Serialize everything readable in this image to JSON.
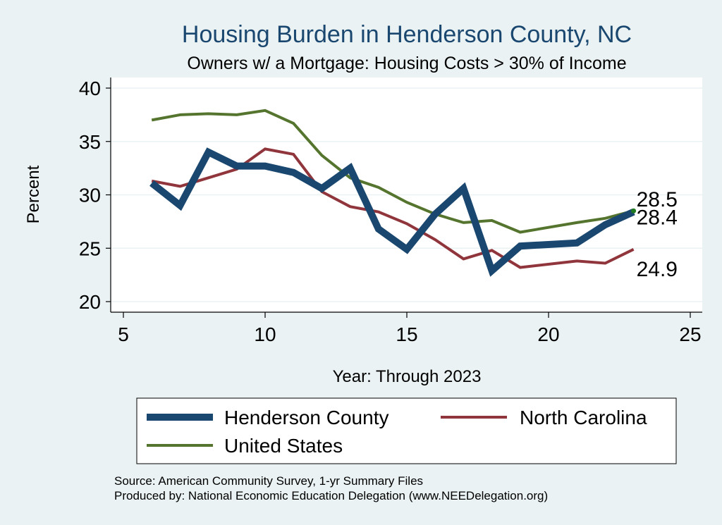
{
  "chart_data": {
    "type": "line",
    "title": "Housing Burden in Henderson County, NC",
    "subtitle": "Owners w/ a Mortgage: Housing Costs > 30% of Income",
    "xlabel": "Year: Through 2023",
    "ylabel": "Percent",
    "xlim": [
      5,
      25
    ],
    "ylim": [
      20,
      40
    ],
    "x_ticks": [
      5,
      10,
      15,
      20,
      25
    ],
    "y_ticks": [
      20,
      25,
      30,
      35,
      40
    ],
    "grid": true,
    "legend": "bottom",
    "series": [
      {
        "name": "Henderson County",
        "color": "#1a476f",
        "x": [
          6,
          7,
          8,
          9,
          10,
          11,
          12,
          13,
          14,
          15,
          16,
          17,
          18,
          19,
          21,
          22,
          23
        ],
        "values": [
          31.1,
          29.0,
          34.0,
          32.7,
          32.7,
          32.1,
          30.6,
          32.5,
          26.8,
          24.9,
          28.2,
          30.6,
          22.9,
          25.2,
          25.5,
          27.2,
          28.4
        ],
        "end_label": "28.4"
      },
      {
        "name": "North Carolina",
        "color": "#90353b",
        "x": [
          6,
          7,
          8,
          9,
          10,
          11,
          12,
          13,
          14,
          15,
          16,
          17,
          18,
          19,
          21,
          22,
          23
        ],
        "values": [
          31.3,
          30.8,
          31.6,
          32.4,
          34.3,
          33.8,
          30.3,
          28.9,
          28.4,
          27.3,
          25.8,
          24.0,
          24.8,
          23.2,
          23.8,
          23.6,
          24.9
        ],
        "end_label": "24.9"
      },
      {
        "name": "United States",
        "color": "#55752f",
        "x": [
          6,
          7,
          8,
          9,
          10,
          11,
          12,
          13,
          14,
          15,
          16,
          17,
          18,
          19,
          21,
          22,
          23
        ],
        "values": [
          37.0,
          37.5,
          37.6,
          37.5,
          37.9,
          36.7,
          33.7,
          31.6,
          30.7,
          29.3,
          28.2,
          27.4,
          27.6,
          26.5,
          27.4,
          27.8,
          28.5
        ],
        "end_label": "28.5"
      }
    ],
    "source_lines": [
      "Source: American Community Survey, 1-yr Summary Files",
      "Produced by: National Economic Education Delegation (www.NEEDelegation.org)"
    ]
  }
}
